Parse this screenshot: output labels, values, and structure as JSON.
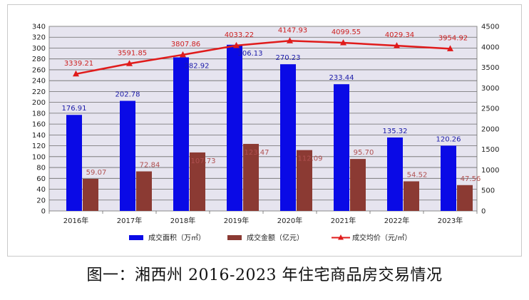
{
  "caption": "图一：湘西州 2016-2023 年住宅商品房交易情况",
  "chart_data": {
    "type": "bar",
    "categories": [
      "2016年",
      "2017年",
      "2018年",
      "2019年",
      "2020年",
      "2021年",
      "2022年",
      "2023年"
    ],
    "left_axis": {
      "min": 0,
      "max": 340,
      "step": 20
    },
    "right_axis": {
      "min": 0,
      "max": 4500,
      "step": 500
    },
    "grid": true,
    "legend_position": "bottom",
    "plot_background": "#e6e4ef",
    "series": [
      {
        "name": "成交面积（万㎡）",
        "type": "bar",
        "axis": "left",
        "color": "#0a0ae6",
        "label_color": "#1a1aa8",
        "values": [
          176.91,
          202.78,
          282.92,
          306.13,
          270.23,
          233.44,
          135.32,
          120.26
        ],
        "labels": [
          "176.91",
          "202.78",
          "282.92",
          "306.13",
          "270.23",
          "233.44",
          "135.32",
          "120.26"
        ]
      },
      {
        "name": "成交金额（亿元）",
        "type": "bar",
        "axis": "left",
        "color": "#8b3a33",
        "label_color": "#b05050",
        "values": [
          59.07,
          72.84,
          107.73,
          123.47,
          112.09,
          95.7,
          54.52,
          47.56
        ],
        "labels": [
          "59.07",
          "72.84",
          "107.73",
          "123.47",
          "112.09",
          "95.70",
          "54.52",
          "47.56"
        ]
      },
      {
        "name": "成交均价（元/㎡）",
        "type": "line",
        "axis": "right",
        "color": "#e01b1b",
        "label_color": "#cc1f1f",
        "values": [
          3339.21,
          3591.85,
          3807.86,
          4033.22,
          4147.93,
          4099.55,
          4029.34,
          3954.92
        ],
        "labels": [
          "3339.21",
          "3591.85",
          "3807.86",
          "4033.22",
          "4147.93",
          "4099.55",
          "4029.34",
          "3954.92"
        ]
      }
    ]
  }
}
